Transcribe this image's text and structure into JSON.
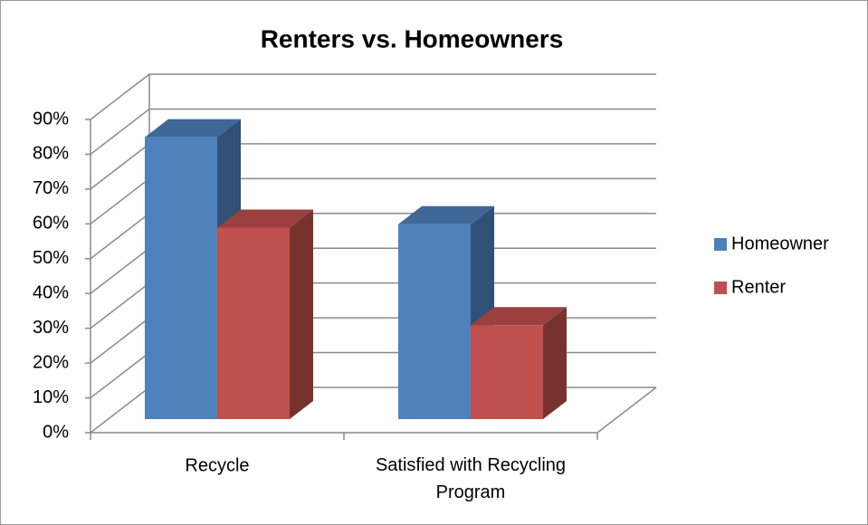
{
  "chart_data": {
    "type": "bar3d",
    "title": "Renters vs. Homeowners",
    "categories": [
      "Recycle",
      "Satisfied with Recycling Program"
    ],
    "series": [
      {
        "name": "Homeowner",
        "color": "#4f81bd",
        "values": [
          81,
          56
        ]
      },
      {
        "name": "Renter",
        "color": "#c0504d",
        "values": [
          55,
          27
        ]
      }
    ],
    "ylim": [
      0,
      90
    ],
    "yticks": [
      {
        "value": 0,
        "label": "0%"
      },
      {
        "value": 10,
        "label": "10%"
      },
      {
        "value": 20,
        "label": "20%"
      },
      {
        "value": 30,
        "label": "30%"
      },
      {
        "value": 40,
        "label": "40%"
      },
      {
        "value": 50,
        "label": "50%"
      },
      {
        "value": 60,
        "label": "60%"
      },
      {
        "value": 70,
        "label": "70%"
      },
      {
        "value": 80,
        "label": "80%"
      },
      {
        "value": 90,
        "label": "90%"
      }
    ],
    "grid": true,
    "legend": "right"
  }
}
